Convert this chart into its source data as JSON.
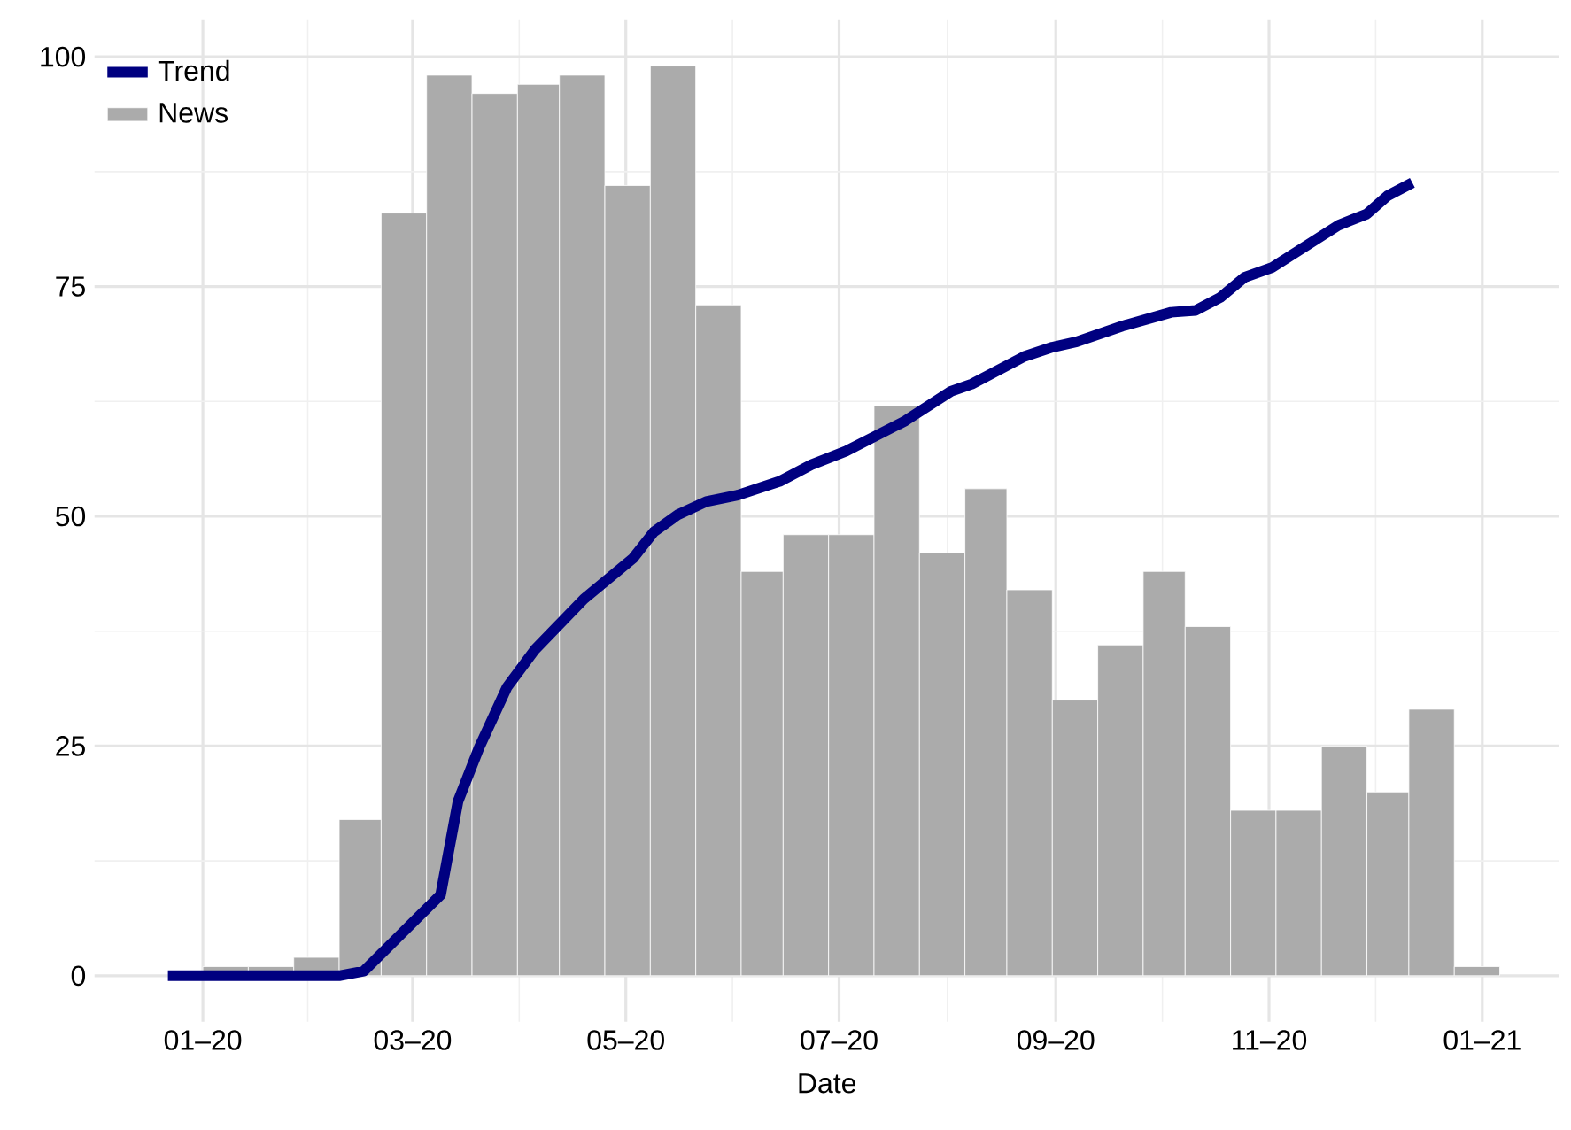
{
  "chart_data": {
    "type": "histogram",
    "xlabel": "Date",
    "xlim": [
      "2019-12-01",
      "2021-01-23"
    ],
    "ylim": [
      -5,
      104
    ],
    "xticks": [
      {
        "value": "2020-01-01",
        "label": "01–20"
      },
      {
        "value": "2020-03-01",
        "label": "03–20"
      },
      {
        "value": "2020-05-01",
        "label": "05–20"
      },
      {
        "value": "2020-07-01",
        "label": "07–20"
      },
      {
        "value": "2020-09-01",
        "label": "09–20"
      },
      {
        "value": "2020-11-01",
        "label": "11–20"
      },
      {
        "value": "2021-01-01",
        "label": "01–21"
      }
    ],
    "yticks": [
      0,
      25,
      50,
      75,
      100
    ],
    "grid": true,
    "legend": "top left",
    "series": [
      {
        "name": "Trend",
        "type": "line",
        "color": "#000080",
        "x": [
          "2019-12-22",
          "2020-02-09",
          "2020-02-16",
          "2020-02-29",
          "2020-03-09",
          "2020-03-14",
          "2020-03-20",
          "2020-03-28",
          "2020-04-05",
          "2020-04-19",
          "2020-05-03",
          "2020-05-09",
          "2020-05-16",
          "2020-05-24",
          "2020-06-02",
          "2020-06-14",
          "2020-06-23",
          "2020-07-03",
          "2020-07-20",
          "2020-08-02",
          "2020-08-08",
          "2020-08-23",
          "2020-08-31",
          "2020-09-07",
          "2020-09-20",
          "2020-10-04",
          "2020-10-11",
          "2020-10-18",
          "2020-10-25",
          "2020-11-02",
          "2020-11-21",
          "2020-11-29",
          "2020-12-05",
          "2020-12-12"
        ],
        "values": [
          0,
          0,
          0.5,
          5.4,
          8.8,
          19,
          24.8,
          31.4,
          35.5,
          41,
          45.4,
          48.3,
          50.2,
          51.6,
          52.3,
          53.8,
          55.6,
          57.1,
          60.4,
          63.6,
          64.4,
          67.4,
          68.4,
          69,
          70.7,
          72.2,
          72.4,
          73.8,
          76,
          77.1,
          81.7,
          82.9,
          84.9,
          86.3
        ]
      },
      {
        "name": "News",
        "color": "#ababab",
        "bins": [
          "2020-01-01",
          "2020-01-14",
          "2020-01-27",
          "2020-02-09",
          "2020-02-21",
          "2020-03-05",
          "2020-03-18",
          "2020-03-31",
          "2020-04-12",
          "2020-04-25",
          "2020-05-08",
          "2020-05-21",
          "2020-06-03",
          "2020-06-15",
          "2020-06-28",
          "2020-07-11",
          "2020-07-24",
          "2020-08-06",
          "2020-08-18",
          "2020-08-31",
          "2020-09-13",
          "2020-09-26",
          "2020-10-08",
          "2020-10-21",
          "2020-11-03",
          "2020-11-16",
          "2020-11-29",
          "2020-12-11",
          "2020-12-24",
          "2021-01-06"
        ],
        "values": [
          1,
          1,
          2,
          17,
          83,
          98,
          96,
          97,
          98,
          86,
          99,
          73,
          44,
          48,
          48,
          62,
          46,
          53,
          42,
          30,
          36,
          44,
          38,
          18,
          18,
          25,
          20,
          29,
          1
        ]
      }
    ]
  }
}
